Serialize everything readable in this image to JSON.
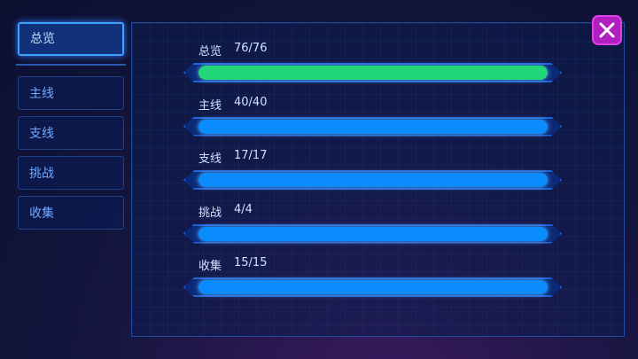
{
  "tabs": [
    {
      "label": "总览",
      "selected": true
    },
    {
      "label": "主线",
      "selected": false
    },
    {
      "label": "支线",
      "selected": false
    },
    {
      "label": "挑战",
      "selected": false
    },
    {
      "label": "收集",
      "selected": false
    }
  ],
  "progress": [
    {
      "name": "总览",
      "text": "76/76",
      "value": 76,
      "total": 76,
      "color": "#22d67a"
    },
    {
      "name": "主线",
      "text": "40/40",
      "value": 40,
      "total": 40,
      "color": "#0a8cff"
    },
    {
      "name": "支线",
      "text": "17/17",
      "value": 17,
      "total": 17,
      "color": "#0a8cff"
    },
    {
      "name": "挑战",
      "text": "4/4",
      "value": 4,
      "total": 4,
      "color": "#0a8cff"
    },
    {
      "name": "收集",
      "text": "15/15",
      "value": 15,
      "total": 15,
      "color": "#0a8cff"
    }
  ]
}
